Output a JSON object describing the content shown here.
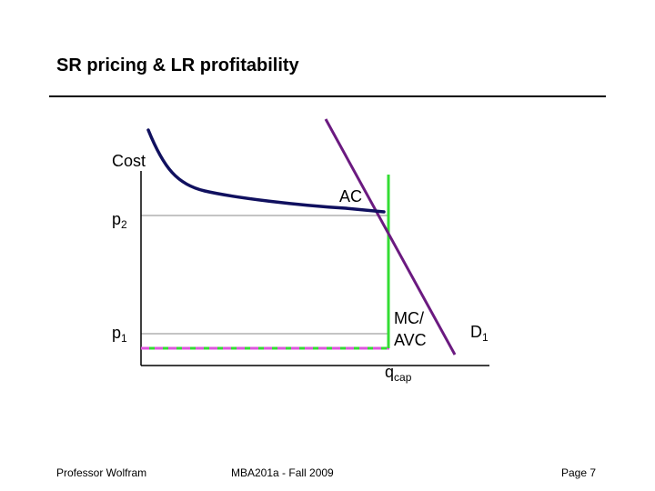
{
  "slide": {
    "title": "SR pricing & LR profitability",
    "footer_left": "Professor Wolfram",
    "footer_center": "MBA201a - Fall 2009",
    "footer_right": "Page 7"
  },
  "diagram": {
    "y_axis_label": "Cost",
    "p2": {
      "base": "p",
      "sub": "2"
    },
    "p1": {
      "base": "p",
      "sub": "1"
    },
    "ac_label": "AC",
    "mc_label_line1": "MC/",
    "mc_label_line2": "AVC",
    "demand": {
      "base": "D",
      "sub": "1"
    },
    "qcap": {
      "base": "q",
      "sub": "cap"
    }
  },
  "colors": {
    "ac_curve": "#10105f",
    "demand_curve": "#6b1a80",
    "mc_curve": "#33dd33",
    "p1_dashed": "#dd55dd",
    "guide_lines": "#888888",
    "axes": "#000000"
  }
}
